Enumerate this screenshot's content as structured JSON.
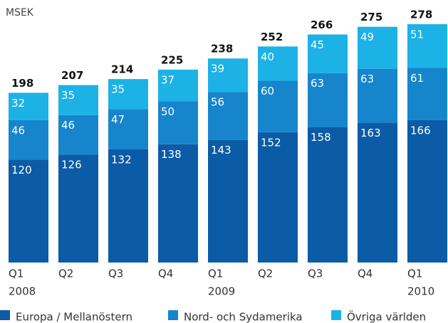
{
  "chart_data": {
    "type": "stacked_bar",
    "unit_label": "MSEK",
    "categories": [
      "Q1",
      "Q2",
      "Q3",
      "Q4",
      "Q1",
      "Q2",
      "Q3",
      "Q4",
      "Q1"
    ],
    "category_years": [
      "2008",
      null,
      null,
      null,
      "2009",
      null,
      null,
      null,
      "2010"
    ],
    "series": [
      {
        "name": "Europa / Mellanöstern",
        "color": "#0b5ba6",
        "values": [
          120,
          126,
          132,
          138,
          143,
          152,
          158,
          163,
          166
        ]
      },
      {
        "name": "Nord- och Sydamerika",
        "color": "#1685cc",
        "values": [
          46,
          46,
          47,
          50,
          56,
          60,
          63,
          63,
          61
        ]
      },
      {
        "name": "Övriga världen",
        "color": "#1cb2e6",
        "values": [
          32,
          35,
          35,
          37,
          39,
          40,
          45,
          49,
          51
        ]
      }
    ],
    "total_labels": [
      198,
      207,
      214,
      225,
      238,
      252,
      266,
      275,
      278
    ]
  }
}
